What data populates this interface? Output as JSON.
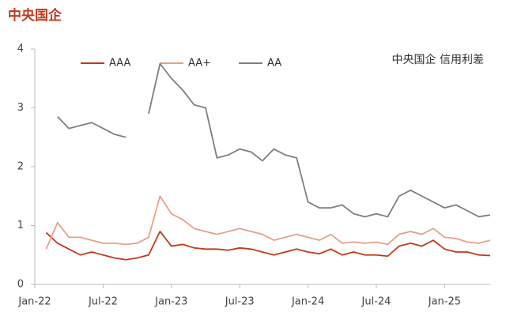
{
  "chart_data": {
    "type": "line",
    "title": "中央国企",
    "annotation": "中央国企 信用利差",
    "x": [
      "2022-02",
      "2022-03",
      "2022-04",
      "2022-05",
      "2022-06",
      "2022-07",
      "2022-08",
      "2022-09",
      "2022-10",
      "2022-11",
      "2022-12",
      "2023-01",
      "2023-02",
      "2023-03",
      "2023-04",
      "2023-05",
      "2023-06",
      "2023-07",
      "2023-08",
      "2023-09",
      "2023-10",
      "2023-11",
      "2023-12",
      "2024-01",
      "2024-02",
      "2024-03",
      "2024-04",
      "2024-05",
      "2024-06",
      "2024-07",
      "2024-08",
      "2024-09",
      "2024-10",
      "2024-11",
      "2024-12",
      "2025-01",
      "2025-02",
      "2025-03",
      "2025-04",
      "2025-05"
    ],
    "series": [
      {
        "name": "AAA",
        "color": "#c0391b",
        "values": [
          0.88,
          0.7,
          0.6,
          0.5,
          0.55,
          0.5,
          0.45,
          0.42,
          0.45,
          0.5,
          0.9,
          0.65,
          0.68,
          0.62,
          0.6,
          0.6,
          0.58,
          0.62,
          0.6,
          0.55,
          0.5,
          0.55,
          0.6,
          0.55,
          0.52,
          0.6,
          0.5,
          0.55,
          0.5,
          0.5,
          0.48,
          0.65,
          0.7,
          0.65,
          0.75,
          0.6,
          0.55,
          0.55,
          0.5,
          0.49
        ]
      },
      {
        "name": "AA+",
        "color": "#e8a08a",
        "values": [
          0.6,
          1.05,
          0.8,
          0.8,
          0.75,
          0.7,
          0.7,
          0.68,
          0.7,
          0.8,
          1.5,
          1.2,
          1.1,
          0.95,
          0.9,
          0.85,
          0.9,
          0.95,
          0.9,
          0.85,
          0.75,
          0.8,
          0.85,
          0.8,
          0.75,
          0.85,
          0.7,
          0.72,
          0.7,
          0.72,
          0.68,
          0.85,
          0.9,
          0.85,
          0.95,
          0.8,
          0.78,
          0.72,
          0.7,
          0.75
        ]
      },
      {
        "name": "AA",
        "color": "#7f7f7f",
        "values": [
          null,
          2.85,
          2.65,
          2.7,
          2.75,
          2.65,
          2.55,
          2.5,
          null,
          2.9,
          3.75,
          3.5,
          3.3,
          3.05,
          3.0,
          2.15,
          2.2,
          2.3,
          2.25,
          2.1,
          2.3,
          2.2,
          2.15,
          1.4,
          1.3,
          1.3,
          1.35,
          1.2,
          1.15,
          1.2,
          1.15,
          1.5,
          1.6,
          1.5,
          1.4,
          1.3,
          1.35,
          1.25,
          1.15,
          1.18
        ]
      }
    ],
    "xlim": [
      "2022-01",
      "2025-05"
    ],
    "xticks": [
      {
        "value": "2022-01",
        "label": "Jan-22"
      },
      {
        "value": "2022-07",
        "label": "Jul-22"
      },
      {
        "value": "2023-01",
        "label": "Jan-23"
      },
      {
        "value": "2023-07",
        "label": "Jul-23"
      },
      {
        "value": "2024-01",
        "label": "Jan-24"
      },
      {
        "value": "2024-07",
        "label": "Jul-24"
      },
      {
        "value": "2025-01",
        "label": "Jan-25"
      }
    ],
    "ylim": [
      0,
      4
    ],
    "yticks": [
      0,
      1,
      2,
      3,
      4
    ],
    "grid": false
  }
}
